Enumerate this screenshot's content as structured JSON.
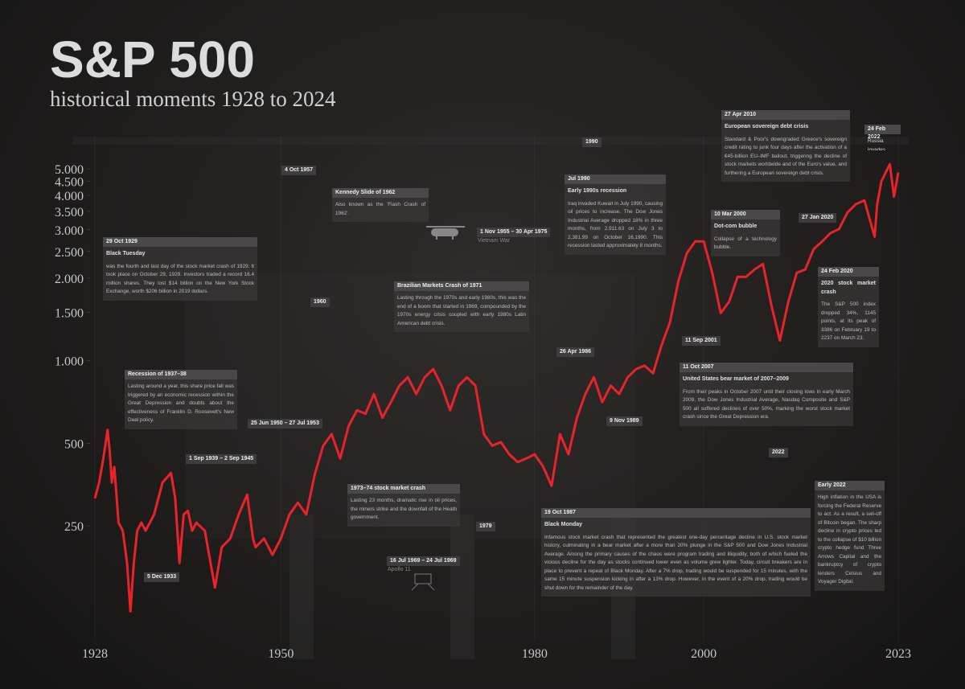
{
  "chart_data": {
    "type": "line",
    "title": "S&P 500",
    "subtitle": "historical moments 1928 to 2024",
    "color": "#e8232a",
    "log_scale": true,
    "xlim": [
      1928,
      2023
    ],
    "xticks": [
      1928,
      1950,
      1980,
      2000,
      2023
    ],
    "ylim": [
      100,
      6000
    ],
    "yticks": [
      {
        "value": 5000,
        "label": "5.000"
      },
      {
        "value": 4500,
        "label": "4.500"
      },
      {
        "value": 4000,
        "label": "4.000"
      },
      {
        "value": 3500,
        "label": "3.500"
      },
      {
        "value": 3000,
        "label": "3.000"
      },
      {
        "value": 2500,
        "label": "2.500"
      },
      {
        "value": 2000,
        "label": "2.000"
      },
      {
        "value": 1500,
        "label": "1.500"
      },
      {
        "value": 1000,
        "label": "1.000"
      },
      500,
      250
    ],
    "x": [
      1928,
      1928.5,
      1929,
      1929.5,
      1929.75,
      1930,
      1930.3,
      1930.8,
      1931.3,
      1931.8,
      1932.2,
      1932.6,
      1933,
      1933.5,
      1934,
      1935,
      1936,
      1937,
      1937.5,
      1938,
      1938.5,
      1939,
      1939.5,
      1940,
      1941,
      1942.2,
      1943,
      1944,
      1945,
      1946,
      1946.7,
      1947,
      1948,
      1949,
      1950,
      1951,
      1952,
      1953,
      1954,
      1955,
      1956,
      1957,
      1958,
      1959,
      1960,
      1961,
      1962,
      1963,
      1964,
      1965,
      1966,
      1967,
      1968,
      1969,
      1970,
      1971,
      1972,
      1973,
      1974,
      1975,
      1976,
      1977,
      1978,
      1979,
      1980,
      1981,
      1982,
      1983,
      1984,
      1985,
      1986,
      1987,
      1988,
      1989,
      1990,
      1991,
      1992,
      1993,
      1994,
      1995,
      1996,
      1997,
      1998,
      1999,
      2000,
      2001,
      2002,
      2003,
      2004,
      2005,
      2006,
      2007,
      2008,
      2009,
      2010,
      2011,
      2012,
      2013,
      2014,
      2015,
      2016,
      2017,
      2018,
      2019,
      2020.2,
      2020.5,
      2021,
      2022,
      2022.5,
      2023
    ],
    "values": [
      315,
      360,
      440,
      560,
      470,
      360,
      410,
      257,
      240,
      183,
      122,
      183,
      240,
      257,
      240,
      275,
      360,
      390,
      315,
      183,
      275,
      284,
      240,
      257,
      240,
      149,
      209,
      225,
      275,
      325,
      225,
      209,
      225,
      196,
      225,
      275,
      304,
      275,
      385,
      490,
      540,
      440,
      578,
      660,
      640,
      756,
      620,
      706,
      811,
      870,
      756,
      870,
      932,
      811,
      660,
      811,
      870,
      811,
      540,
      490,
      505,
      456,
      427,
      440,
      456,
      412,
      350,
      540,
      456,
      620,
      756,
      870,
      706,
      811,
      756,
      870,
      932,
      960,
      900,
      1136,
      1380,
      1950,
      2465,
      2720,
      2720,
      2090,
      1490,
      1640,
      2020,
      2020,
      2150,
      2250,
      1590,
      1185,
      1640,
      2090,
      2150,
      2550,
      2720,
      2920,
      3020,
      3470,
      3720,
      3840,
      2830,
      3700,
      4500,
      5200,
      3960,
      4850
    ],
    "annotations": [
      {
        "date": "29 Oct 1929",
        "title": "Black Tuesday",
        "text": "was the fourth and last day of the stock market crash of 1929. It took place on October 29, 1929. Investors traded a record 16.4 million shares. They lost $14 billion on the New York Stock Exchange, worth $206 billion in 2019 dollars."
      },
      {
        "date": "Recession of 1937–38",
        "text": "Lasting around a year, this share price fall was triggered by an economic recession within the Great Depression and doubts about the effectiveness of Franklin D. Roosevelt's New Deal policy."
      },
      {
        "date": "Kennedy Slide of 1962",
        "text": "Also known as the 'Flash Crash of 1962'."
      },
      {
        "date": "Brazilian Markets Crash of 1971",
        "text": "Lasting through the 1970s and early 1980s, this was the end of a boom that started in 1969, compounded by the 1970s energy crisis coupled with early 1980s Latin American debt crisis."
      },
      {
        "date": "1973–74 stock market crash",
        "text": "Lasting 23 months, dramatic rise in oil prices, the miners strike and the downfall of the Heath government."
      },
      {
        "date": "19 Oct 1987",
        "title": "Black Monday",
        "text": "Infamous stock market crash that represented the greatest one-day percentage decline in U.S. stock market history, culminating in a bear market after a more than 20% plunge in the S&P 500 and Dow Jones Industrial Average. Among the primary causes of the chaos were program trading and illiquidity, both of which fueled the vicious decline for the day as stocks continued lower even as volume grew lighter. Today, circuit breakers are in place to prevent a repeat of Black Monday. After a 7% drop, trading would be suspended for 15 minutes, with the same 15 minute suspension kicking in after a 13% drop. However, in the event of a 20% drop, trading would be shut down for the remainder of the day."
      },
      {
        "date": "Jul 1990",
        "title": "Early 1990s recession",
        "text": "Iraq invaded Kuwait in July 1990, causing oil prices to increase. The Dow Jones Industrial Average dropped 18% in three months, from 2,911.63 on July 3 to 2,381.99 on October 16,1990. This recession lasted approximately 8 months."
      },
      {
        "date": "10 Mar 2000",
        "title": "Dot-com bubble",
        "text": "Collapse of a technology bubble."
      },
      {
        "date": "27 Apr 2010",
        "title": "European sovereign debt crisis",
        "text": "Standard & Poor's downgraded Greece's sovereign credit rating to junk four days after the activation of a €45-billion EU–IMF bailout, triggering the decline of stock markets worldwide and of the Euro's value, and furthering a European sovereign debt crisis."
      },
      {
        "date": "11 Oct 2007",
        "title": "United States bear market of 2007–2009",
        "text": "From their peaks in October 2007 until their closing lows in early March 2009, the Dow Jones Industrial Average, Nasdaq Composite and S&P 500 all suffered declines of over 50%, marking the worst stock market crash since the Great Depression era."
      },
      {
        "date": "24 Feb 2020",
        "title": "2020 stock market crash",
        "text": "The S&P 500 index dropped 34%, 1145 points, at its peak of 3386 on February 19 to 2237 on March 23."
      },
      {
        "date": "Early 2022",
        "text": "High inflation in the USA is forcing the Federal Reserve to act. As a result, a sell-off of Bitcoin began. The sharp decline in crypto prices led to the collapse of $10 billion crypto hedge fund Three Arrows Capital and the bankruptcy of crypto lenders Celsius and Voyager Digital."
      },
      {
        "date": "24 Feb 2022",
        "text": "Russia invades Ukraine"
      }
    ],
    "events": [
      {
        "date": "4 Oct 1957"
      },
      {
        "date": "1960"
      },
      {
        "date": "1 Sep 1939 – 2 Sep 1945"
      },
      {
        "date": "5 Dec 1933"
      },
      {
        "date": "25 Jun 1950 – 27 Jul 1953"
      },
      {
        "date": "1 Nov 1955 – 30 Apr 1975",
        "note": "Vietnam War"
      },
      {
        "date": "1990"
      },
      {
        "date": "26 Apr 1986"
      },
      {
        "date": "9 Nov 1989"
      },
      {
        "date": "11 Sep 2001"
      },
      {
        "date": "27 Jan 2020"
      },
      {
        "date": "2022"
      },
      {
        "date": "1979"
      },
      {
        "date": "16 Jul 1969 – 24 Jul 1969",
        "note": "Apollo 11"
      }
    ]
  }
}
